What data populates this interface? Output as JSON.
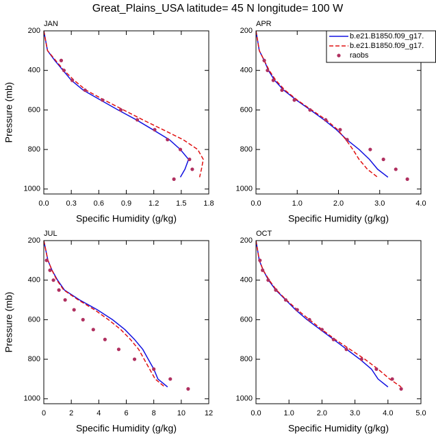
{
  "title": "Great_Plains_USA  latitude= 45 N longitude= 100 W",
  "chart_data": [
    {
      "type": "line",
      "title": "JAN",
      "xlabel": "Specific Humidity (g/kg)",
      "ylabel": "Pressure (mb)",
      "xlim": [
        0,
        1.8
      ],
      "xticks": [
        {
          "value": 0,
          "label": "0.0"
        },
        {
          "value": 0.3,
          "label": "0.3"
        },
        {
          "value": 0.6,
          "label": "0.6"
        },
        {
          "value": 0.9,
          "label": "0.9"
        },
        {
          "value": 1.2,
          "label": "1.2"
        },
        {
          "value": 1.5,
          "label": "1.5"
        },
        {
          "value": 1.8,
          "label": "1.8"
        }
      ],
      "ylim": [
        1025,
        200
      ],
      "yticks": [
        200,
        400,
        600,
        800,
        1000
      ],
      "series": [
        {
          "color": "#1010e0",
          "line_style": "solid",
          "x": [
            0,
            0.04,
            0.12,
            0.21,
            0.3,
            0.43,
            0.62,
            0.81,
            1.01,
            1.19,
            1.37,
            1.49,
            1.58,
            1.54,
            1.49
          ],
          "values": [
            200,
            300,
            350,
            400,
            450,
            500,
            550,
            600,
            650,
            700,
            750,
            800,
            850,
            900,
            940
          ]
        },
        {
          "color": "#e01010",
          "line_style": "dashed",
          "x": [
            0,
            0.04,
            0.13,
            0.22,
            0.33,
            0.46,
            0.66,
            0.87,
            1.08,
            1.3,
            1.52,
            1.68,
            1.74,
            1.72,
            1.7
          ],
          "values": [
            200,
            300,
            350,
            400,
            450,
            500,
            550,
            600,
            650,
            700,
            750,
            800,
            850,
            900,
            940
          ]
        },
        {
          "color": "#b03060",
          "marker": "circle",
          "x": [
            0.19,
            0.22,
            0.31,
            0.45,
            0.64,
            0.84,
            1.02,
            1.21,
            1.35,
            1.49,
            1.59,
            1.62,
            1.42
          ],
          "values": [
            350,
            400,
            450,
            500,
            550,
            600,
            650,
            700,
            750,
            800,
            850,
            900,
            950
          ]
        }
      ]
    },
    {
      "type": "line",
      "title": "APR",
      "xlabel": "Specific Humidity (g/kg)",
      "legend": "upper right",
      "xlim": [
        0,
        4
      ],
      "xticks": [
        {
          "value": 0,
          "label": "0.0"
        },
        {
          "value": 1,
          "label": "1.0"
        },
        {
          "value": 2,
          "label": "2.0"
        },
        {
          "value": 3,
          "label": "3.0"
        },
        {
          "value": 4,
          "label": "4.0"
        }
      ],
      "ylim": [
        1025,
        200
      ],
      "yticks": [
        200,
        400,
        600,
        800,
        1000
      ],
      "series": [
        {
          "name": "b.e21.B1850.f09_g17.",
          "color": "#1010e0",
          "line_style": "solid",
          "x": [
            0,
            0.08,
            0.2,
            0.3,
            0.45,
            0.67,
            0.98,
            1.32,
            1.65,
            1.95,
            2.2,
            2.5,
            2.75,
            2.95,
            3.2
          ],
          "values": [
            200,
            300,
            350,
            400,
            450,
            500,
            550,
            600,
            650,
            700,
            750,
            800,
            850,
            900,
            940
          ]
        },
        {
          "name": "b.e21.B1850.f09_g17.",
          "color": "#e01010",
          "line_style": "dashed",
          "x": [
            0,
            0.08,
            0.2,
            0.32,
            0.48,
            0.7,
            1.0,
            1.35,
            1.7,
            1.98,
            2.18,
            2.35,
            2.5,
            2.7,
            2.95
          ],
          "values": [
            200,
            300,
            350,
            400,
            450,
            500,
            550,
            600,
            650,
            700,
            750,
            800,
            850,
            900,
            940
          ]
        },
        {
          "name": "raobs",
          "color": "#b03060",
          "marker": "circle",
          "x": [
            0.2,
            0.28,
            0.42,
            0.63,
            0.93,
            1.31,
            1.69,
            2.04,
            2.21,
            2.77,
            3.09,
            3.39,
            3.67
          ],
          "values": [
            350,
            400,
            450,
            500,
            550,
            600,
            650,
            700,
            750,
            800,
            850,
            900,
            950
          ]
        }
      ]
    },
    {
      "type": "line",
      "title": "JUL",
      "xlabel": "Specific Humidity (g/kg)",
      "ylabel": "Pressure (mb)",
      "xlim": [
        0,
        12
      ],
      "xticks": [
        0,
        2,
        4,
        6,
        8,
        10,
        12
      ],
      "ylim": [
        1025,
        200
      ],
      "yticks": [
        200,
        400,
        600,
        800,
        1000
      ],
      "series": [
        {
          "color": "#1010e0",
          "line_style": "solid",
          "x": [
            0,
            0.3,
            0.6,
            1.0,
            1.5,
            2.6,
            3.9,
            5.0,
            5.9,
            6.6,
            7.2,
            7.6,
            8.0,
            8.3,
            9.0
          ],
          "values": [
            200,
            300,
            350,
            400,
            450,
            500,
            550,
            600,
            650,
            700,
            750,
            800,
            850,
            900,
            940
          ]
        },
        {
          "color": "#e01010",
          "line_style": "dashed",
          "x": [
            0,
            0.3,
            0.6,
            0.95,
            1.45,
            2.5,
            3.7,
            4.7,
            5.6,
            6.3,
            6.9,
            7.3,
            7.7,
            8.1,
            8.8
          ],
          "values": [
            200,
            300,
            350,
            400,
            450,
            500,
            550,
            600,
            650,
            700,
            750,
            800,
            850,
            900,
            940
          ]
        },
        {
          "color": "#b03060",
          "marker": "circle",
          "x": [
            0.2,
            0.45,
            0.7,
            1.1,
            1.55,
            2.2,
            2.85,
            3.6,
            4.45,
            5.45,
            6.6,
            8.0,
            9.2,
            10.5
          ],
          "values": [
            300,
            350,
            400,
            450,
            500,
            550,
            600,
            650,
            700,
            750,
            800,
            850,
            900,
            950
          ]
        }
      ]
    },
    {
      "type": "line",
      "title": "OCT",
      "xlabel": "Specific Humidity (g/kg)",
      "xlim": [
        0,
        5
      ],
      "xticks": [
        {
          "value": 0,
          "label": "0.0"
        },
        {
          "value": 1,
          "label": "1.0"
        },
        {
          "value": 2,
          "label": "2.0"
        },
        {
          "value": 3,
          "label": "3.0"
        },
        {
          "value": 4,
          "label": "4.0"
        },
        {
          "value": 5,
          "label": "5.0"
        }
      ],
      "ylim": [
        1025,
        200
      ],
      "yticks": [
        200,
        400,
        600,
        800,
        1000
      ],
      "series": [
        {
          "color": "#1010e0",
          "line_style": "solid",
          "x": [
            0,
            0.1,
            0.22,
            0.38,
            0.6,
            0.9,
            1.2,
            1.55,
            1.95,
            2.35,
            2.75,
            3.15,
            3.5,
            3.7,
            4.0
          ],
          "values": [
            200,
            300,
            350,
            400,
            450,
            500,
            550,
            600,
            650,
            700,
            750,
            800,
            850,
            900,
            940
          ]
        },
        {
          "color": "#e01010",
          "line_style": "dashed",
          "x": [
            0,
            0.1,
            0.22,
            0.4,
            0.62,
            0.92,
            1.25,
            1.62,
            2.0,
            2.4,
            2.85,
            3.3,
            3.7,
            4.05,
            4.4
          ],
          "values": [
            200,
            300,
            350,
            400,
            450,
            500,
            550,
            600,
            650,
            700,
            750,
            800,
            850,
            900,
            940
          ]
        },
        {
          "color": "#b03060",
          "marker": "circle",
          "x": [
            0.12,
            0.2,
            0.37,
            0.6,
            0.9,
            1.25,
            1.62,
            2.0,
            2.35,
            2.74,
            3.2,
            3.65,
            4.13,
            4.4
          ],
          "values": [
            300,
            350,
            400,
            450,
            500,
            550,
            600,
            650,
            700,
            750,
            800,
            850,
            900,
            950
          ]
        }
      ]
    }
  ]
}
